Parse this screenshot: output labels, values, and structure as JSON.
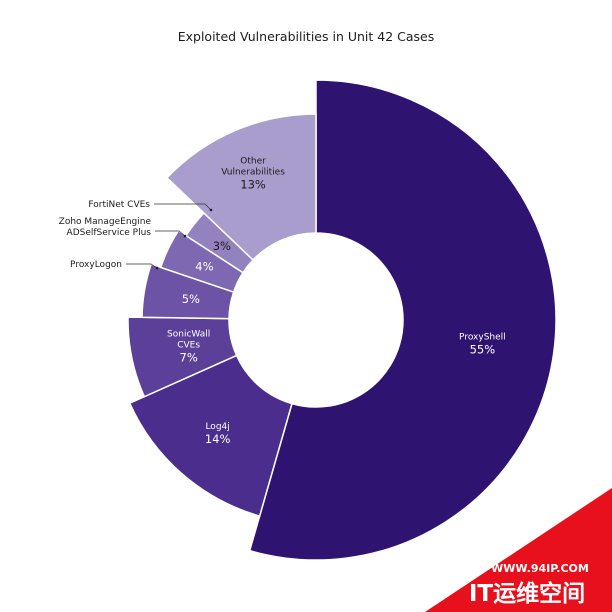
{
  "chart_data": {
    "type": "pie",
    "title": "Exploited Vulnerabilities in Unit 42 Cases",
    "slices": [
      {
        "name": "ProxyShell",
        "value": 55,
        "label": "55%",
        "color": "#2e1470",
        "text_color": "#ffffff",
        "lines": [
          "ProxyShell"
        ]
      },
      {
        "name": "Log4j",
        "value": 14,
        "label": "14%",
        "color": "#4a2d8c",
        "text_color": "#ffffff",
        "lines": [
          "Log4j"
        ]
      },
      {
        "name": "SonicWall CVEs",
        "value": 7,
        "label": "7%",
        "color": "#5b3f98",
        "text_color": "#ffffff",
        "lines": [
          "SonicWall",
          "CVEs"
        ]
      },
      {
        "name": "ProxyLogon",
        "value": 5,
        "label": "5%",
        "color": "#6c53a5",
        "text_color": "#ffffff",
        "lines": []
      },
      {
        "name": "Zoho ManageEngine ADSelfService Plus",
        "value": 4,
        "label": "4%",
        "color": "#7e68b2",
        "text_color": "#ffffff",
        "lines": []
      },
      {
        "name": "FortiNet CVEs",
        "value": 3,
        "label": "3%",
        "color": "#9282bf",
        "text_color": "#1c1c1c",
        "lines": []
      },
      {
        "name": "Other Vulnerabilities",
        "value": 13,
        "label": "13%",
        "color": "#a89dcc",
        "text_color": "#1c1c1c",
        "lines": [
          "Other",
          "Vulnerabilities"
        ]
      }
    ],
    "external_labels": [
      {
        "slice": "FortiNet CVEs",
        "lines": [
          "FortiNet CVEs"
        ]
      },
      {
        "slice": "Zoho ManageEngine ADSelfService Plus",
        "lines": [
          "Zoho ManageEngine",
          "ADSelfService Plus"
        ]
      },
      {
        "slice": "ProxyLogon",
        "lines": [
          "ProxyLogon"
        ]
      }
    ]
  },
  "watermark": {
    "url": "WWW.94IP.COM",
    "name": "IT运维空间",
    "color": "#e8101c"
  }
}
